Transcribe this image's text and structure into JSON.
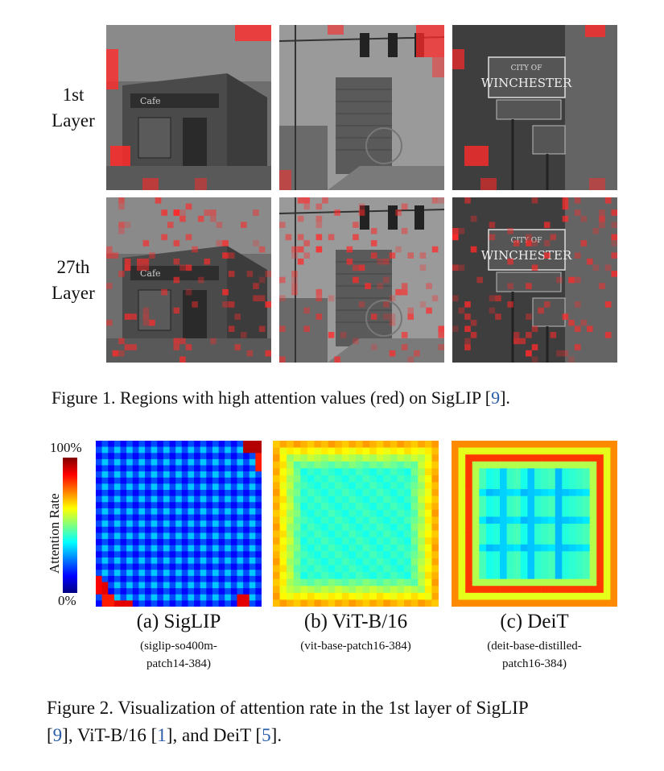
{
  "figure1": {
    "row_labels": [
      {
        "line1": "1st",
        "line2": "Layer"
      },
      {
        "line1": "27th",
        "line2": "Layer"
      }
    ],
    "columns": [
      {
        "scene": "corner-cafe-building",
        "sign_text": "Cafe"
      },
      {
        "scene": "street-with-tower-and-traffic-lights",
        "sign_text": ""
      },
      {
        "scene": "winchester-sign",
        "sign_text": "WINCHESTER",
        "sign_top": "CITY OF"
      }
    ],
    "caption": {
      "prefix": "Figure 1. Regions with high attention values (red) on SigLIP [",
      "cite": "9",
      "suffix": "]."
    },
    "highlight_color": "#ff2a2a"
  },
  "figure2": {
    "colorbar": {
      "max_label": "100%",
      "min_label": "0%",
      "title": "Attention Rate"
    },
    "panels": [
      {
        "label": "(a) SigLIP",
        "note_line1": "(siglip-so400m-",
        "note_line2": "patch14-384)"
      },
      {
        "label": "(b) ViT-B/16",
        "note_line1": "(vit-base-patch16-384)",
        "note_line2": ""
      },
      {
        "label": "(c) DeiT",
        "note_line1": "(deit-base-distilled-",
        "note_line2": "patch16-384)"
      }
    ],
    "caption": {
      "line1": "Figure 2. Visualization of attention rate in the 1st layer of SigLIP",
      "l2_a": "[",
      "cite1": "9",
      "l2_b": "], ViT-B/16 [",
      "cite2": "1",
      "l2_c": "], and DeiT [",
      "cite3": "5",
      "l2_d": "]."
    }
  },
  "chart_data": [
    {
      "type": "heatmap",
      "title": "(a) SigLIP",
      "grid": 27,
      "value_range": [
        0,
        100
      ],
      "pattern": "low everywhere, bright periodic grid lines, hot spots at top-right and bottom-left corners"
    },
    {
      "type": "heatmap",
      "title": "(b) ViT-B/16",
      "grid": 24,
      "value_range": [
        0,
        100
      ],
      "pattern": "mid (cyan) center rising to high (yellow-orange) at borders"
    },
    {
      "type": "heatmap",
      "title": "(c) DeiT",
      "grid": 24,
      "value_range": [
        0,
        100
      ],
      "pattern": "mid center with horizontal/vertical bands, high (orange-red) double border frame"
    }
  ]
}
